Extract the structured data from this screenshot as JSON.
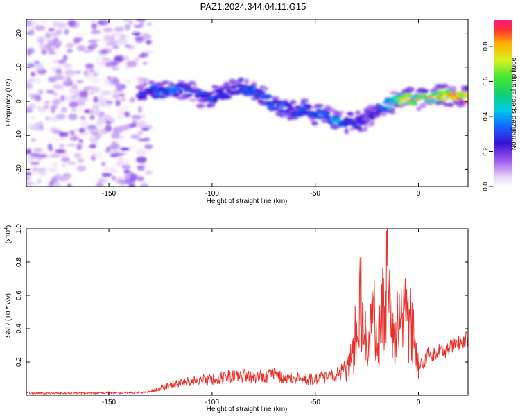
{
  "figure_title": "PAZ1.2024.344.04.11.G15",
  "colors": {
    "snr_line": "#e8312a",
    "axis": "#000000",
    "background": "#ffffff"
  },
  "chart_data": [
    {
      "type": "heatmap",
      "panel": "spectrogram",
      "title": "PAZ1.2024.344.04.11.G15",
      "xlabel": "Height of straight line (km)",
      "ylabel": "Frequency (Hz)",
      "xlim": [
        -190,
        24
      ],
      "ylim": [
        -25,
        24
      ],
      "xticks": [
        -150,
        -100,
        -50,
        0
      ],
      "yticks": [
        -20,
        -10,
        0,
        10,
        20
      ],
      "grid": false,
      "colormap": "rainbow (purple-blue-cyan-green-yellow-red)",
      "noise_region": {
        "x_range": [
          -190,
          -130
        ],
        "freq_range": [
          -25,
          24
        ],
        "amplitude_range": [
          0.02,
          0.12
        ]
      },
      "ridge": {
        "x": [
          -135,
          -130,
          -125,
          -120,
          -115,
          -110,
          -105,
          -100,
          -95,
          -90,
          -85,
          -80,
          -75,
          -70,
          -65,
          -60,
          -55,
          -50,
          -45,
          -40,
          -35,
          -30,
          -25,
          -20,
          -15,
          -10,
          -5,
          0,
          5,
          10,
          15,
          20,
          24
        ],
        "frequency": [
          2,
          3,
          2.5,
          3,
          3.5,
          2.5,
          1.5,
          1,
          2,
          3,
          3.5,
          3,
          1,
          -1,
          -2,
          -3,
          -2.5,
          -4,
          -4.5,
          -6,
          -6.5,
          -6.5,
          -5,
          -3,
          -1,
          0,
          0.5,
          0.5,
          1,
          1.5,
          2,
          1.5,
          1
        ],
        "amplitude": [
          0.25,
          0.3,
          0.32,
          0.35,
          0.3,
          0.28,
          0.3,
          0.32,
          0.28,
          0.25,
          0.3,
          0.32,
          0.28,
          0.3,
          0.32,
          0.28,
          0.3,
          0.32,
          0.35,
          0.38,
          0.3,
          0.25,
          0.2,
          0.25,
          0.4,
          0.6,
          0.75,
          0.65,
          0.6,
          0.62,
          0.7,
          0.9,
          0.75
        ]
      },
      "colorbar": {
        "label": "Normalized spectral amplitude",
        "range": [
          0.0,
          0.95
        ],
        "ticks": [
          "0.0",
          "0.2",
          "0.4",
          "0.6",
          "0.8"
        ]
      }
    },
    {
      "type": "line",
      "panel": "snr",
      "xlabel": "Height of straight line (km)",
      "ylabel": "SNR (10 * v/v)",
      "y_multiplier_label": "(x10",
      "y_multiplier_exponent": "4",
      "y_multiplier_close": ")",
      "xlim": [
        -190,
        24
      ],
      "ylim": [
        0,
        1.0
      ],
      "xticks": [
        -150,
        -100,
        -50,
        0
      ],
      "yticks": [
        0.2,
        0.4,
        0.6,
        0.8,
        1.0
      ],
      "grid": false,
      "series": [
        {
          "x": [
            -190,
            -180,
            -170,
            -160,
            -150,
            -140,
            -130,
            -125,
            -120,
            -115,
            -110,
            -105,
            -100,
            -95,
            -90,
            -85,
            -80,
            -75,
            -70,
            -65,
            -60,
            -55,
            -50,
            -45,
            -40,
            -37,
            -34,
            -32,
            -30,
            -28,
            -26,
            -24,
            -22,
            -20,
            -18,
            -16,
            -15,
            -14,
            -12,
            -10,
            -8,
            -6,
            -4,
            -2,
            0,
            2,
            5,
            8,
            10,
            13,
            16,
            19,
            22,
            24
          ],
          "y": [
            0.015,
            0.012,
            0.014,
            0.013,
            0.015,
            0.014,
            0.02,
            0.035,
            0.05,
            0.06,
            0.07,
            0.075,
            0.085,
            0.09,
            0.095,
            0.1,
            0.09,
            0.095,
            0.1,
            0.09,
            0.085,
            0.08,
            0.085,
            0.09,
            0.1,
            0.12,
            0.16,
            0.25,
            0.42,
            0.6,
            0.35,
            0.4,
            0.5,
            0.38,
            0.45,
            0.7,
            0.98,
            0.5,
            0.42,
            0.45,
            0.44,
            0.48,
            0.46,
            0.35,
            0.2,
            0.18,
            0.25,
            0.24,
            0.28,
            0.26,
            0.3,
            0.31,
            0.33,
            0.34
          ]
        }
      ]
    }
  ]
}
